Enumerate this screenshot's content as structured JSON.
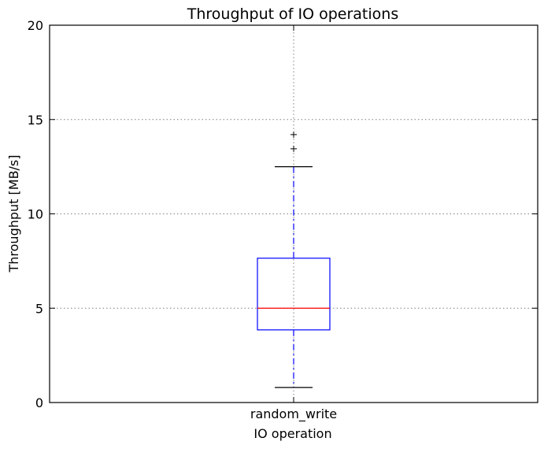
{
  "chart_data": {
    "type": "box",
    "title": "Throughput of IO operations",
    "xlabel": "IO operation",
    "ylabel": "Throughput [MB/s]",
    "ylim": [
      0,
      20
    ],
    "yticks": [
      0,
      5,
      10,
      15,
      20
    ],
    "grid": true,
    "categories": [
      "random_write"
    ],
    "boxes": [
      {
        "label": "random_write",
        "whisker_low": 0.8,
        "q1": 3.85,
        "median": 5.0,
        "q3": 7.65,
        "whisker_high": 12.5,
        "outliers": [
          13.45,
          14.2
        ]
      }
    ],
    "colors": {
      "box": "#0000ff",
      "whisker": "#0000ff",
      "median": "#ff0000",
      "caps": "#000000",
      "outliers": "#000000",
      "grid": "#7f7f7f"
    }
  }
}
